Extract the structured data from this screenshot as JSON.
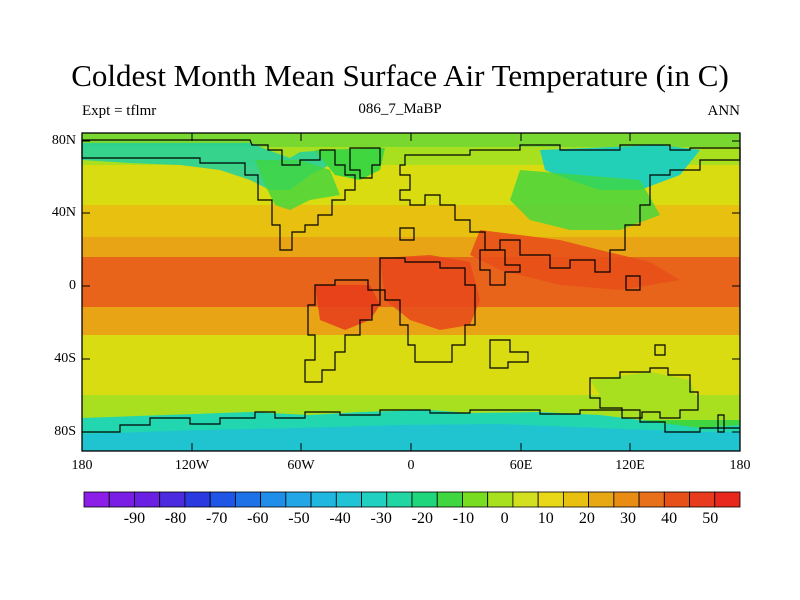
{
  "title": "Coldest Month Mean Surface Air Temperature (in C)",
  "subtitle_left": "Expt = tflmr",
  "subtitle_center": "086_7_MaBP",
  "subtitle_right": "ANN",
  "lat_labels": [
    "80N",
    "40N",
    "0",
    "40S",
    "80S"
  ],
  "lon_labels": [
    "180",
    "120W",
    "60W",
    "0",
    "60E",
    "120E",
    "180"
  ],
  "colorbar": {
    "labels": [
      "-90",
      "-80",
      "-70",
      "-60",
      "-50",
      "-40",
      "-30",
      "-20",
      "-10",
      "0",
      "10",
      "20",
      "30",
      "40",
      "50"
    ],
    "colors": [
      "#8c1ee8",
      "#7a1ee6",
      "#6a20e2",
      "#4c2ae0",
      "#2a3ae0",
      "#1e55e6",
      "#1e72e8",
      "#1f8ee8",
      "#22a6e6",
      "#1fb6e0",
      "#20c4d6",
      "#22d0c2",
      "#22d6a4",
      "#20d67c",
      "#40d640",
      "#78dc20",
      "#a8e020",
      "#d2e020",
      "#e8d818",
      "#e8c010",
      "#e8a814",
      "#e88c14",
      "#e8701a",
      "#e8501a",
      "#e83a1c",
      "#e8281c"
    ]
  },
  "map_colors": {
    "cold": "#1fd0c8",
    "cool": "#40d640",
    "mild": "#a8e020",
    "warm": "#d8dc10",
    "hot": "#e8b810",
    "veryhot": "#e88410",
    "tropic": "#e85a1a",
    "land_hot": "#e8401c"
  }
}
